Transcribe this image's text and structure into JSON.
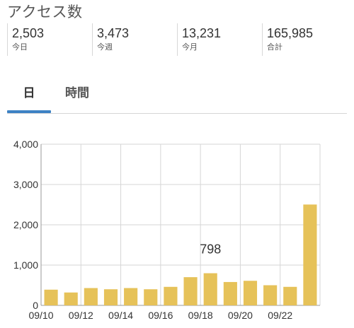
{
  "header": {
    "title": "アクセス数"
  },
  "stats": [
    {
      "value": "2,503",
      "label": "今日"
    },
    {
      "value": "3,473",
      "label": "今週"
    },
    {
      "value": "13,231",
      "label": "今月"
    },
    {
      "value": "165,985",
      "label": "合計"
    }
  ],
  "tabs": [
    {
      "label": "日",
      "active": true
    },
    {
      "label": "時間",
      "active": false
    }
  ],
  "colors": {
    "bar": "#e6c259",
    "accent": "#3d82c4",
    "grid": "#d6d6d6"
  },
  "chart_data": {
    "type": "bar",
    "categories": [
      "09/10",
      "09/11",
      "09/12",
      "09/13",
      "09/14",
      "09/15",
      "09/16",
      "09/17",
      "09/18",
      "09/19",
      "09/20",
      "09/21",
      "09/22",
      "09/23"
    ],
    "x_tick_labels": [
      "09/10",
      "09/12",
      "09/14",
      "09/16",
      "09/18",
      "09/20",
      "09/22"
    ],
    "values": [
      390,
      320,
      430,
      400,
      430,
      400,
      460,
      700,
      798,
      580,
      610,
      500,
      460,
      2503
    ],
    "ylim": [
      0,
      4000
    ],
    "y_ticks": [
      "0",
      "1,000",
      "2,000",
      "3,000",
      "4,000"
    ],
    "y_tick_values": [
      0,
      1000,
      2000,
      3000,
      4000
    ],
    "annotation": {
      "category": "09/18",
      "text": "798"
    },
    "grid": true
  }
}
